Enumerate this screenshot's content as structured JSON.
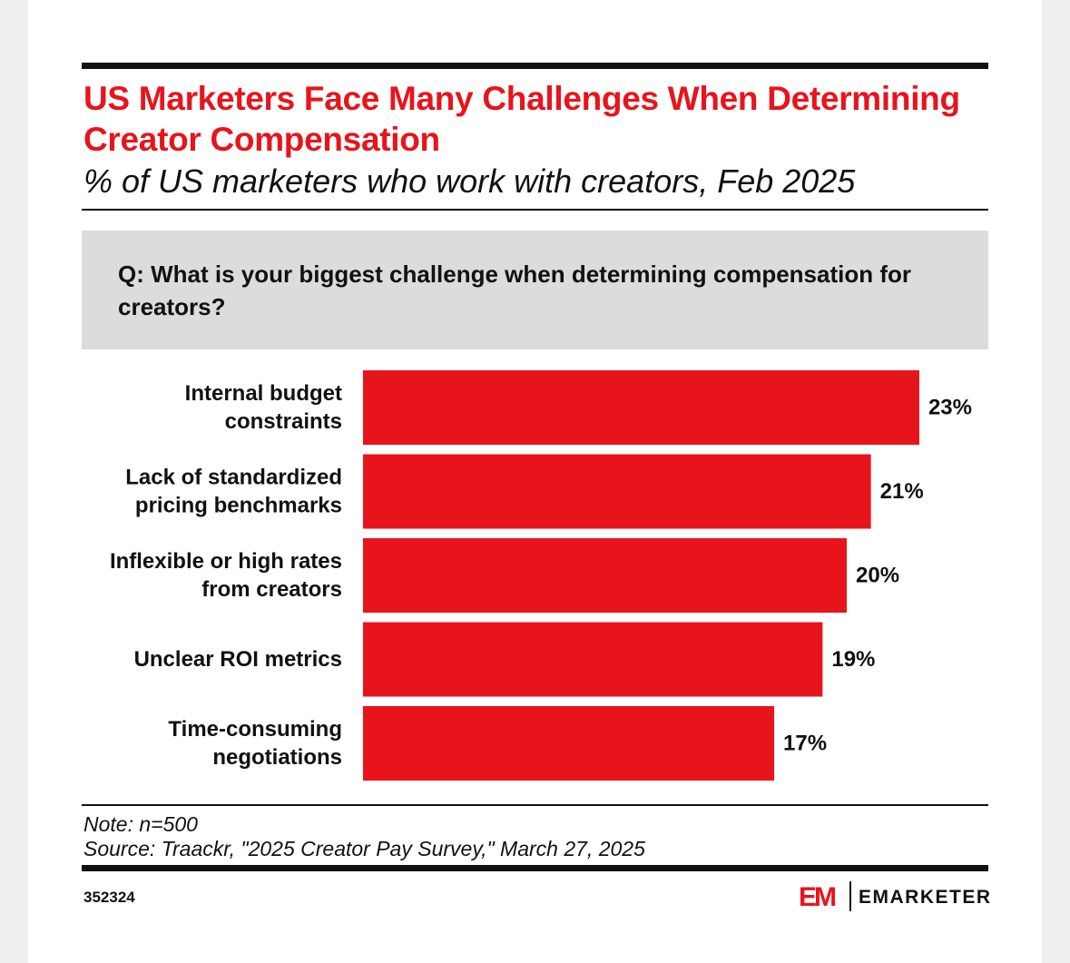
{
  "header": {
    "title": "US Marketers Face Many Challenges When Determining Creator Compensation",
    "subtitle": "% of US marketers who work with creators, Feb 2025"
  },
  "question": "Q: What is your biggest challenge when determining compensation for creators?",
  "chart_data": {
    "type": "bar",
    "orientation": "horizontal",
    "categories": [
      [
        "Internal budget",
        "constraints"
      ],
      [
        "Lack of standardized",
        "pricing benchmarks"
      ],
      [
        "Inflexible or high rates",
        "from creators"
      ],
      [
        "Unclear ROI metrics"
      ],
      [
        "Time-consuming",
        "negotiations"
      ]
    ],
    "values": [
      23,
      21,
      20,
      19,
      17
    ],
    "value_labels": [
      "23%",
      "21%",
      "20%",
      "19%",
      "17%"
    ],
    "bar_color": "#e8141c",
    "grid": false,
    "legend": "none"
  },
  "footer": {
    "note": "Note: n=500",
    "source": "Source: Traackr, \"2025 Creator Pay Survey,\" March 27, 2025",
    "chart_id": "352324",
    "brand_mark": "EM",
    "brand_name": "EMARKETER"
  }
}
